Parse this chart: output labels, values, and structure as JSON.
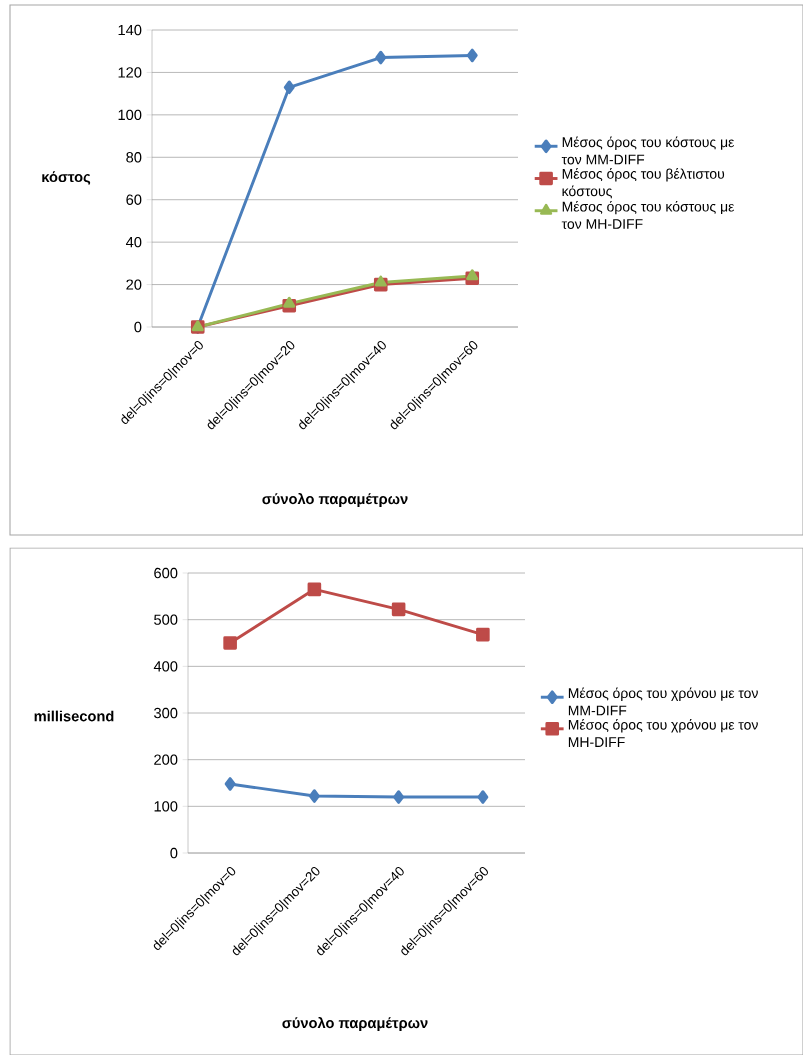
{
  "chart_data": [
    {
      "type": "line",
      "xlabel": "σύνολο παραμέτρων",
      "ylabel": "κόστος",
      "categories": [
        "del=0|ins=0|mov=0",
        "del=0|ins=0|mov=20",
        "del=0|ins=0|mov=40",
        "del=0|ins=0|mov=60"
      ],
      "series": [
        {
          "name": "Μέσος όρος του κόστους με τον MM-DIFF",
          "color": "#4a7ebb",
          "marker": "diamond",
          "values": [
            0,
            113,
            127,
            128
          ]
        },
        {
          "name": "Μέσος όρος του βέλτιστου κόστους",
          "color": "#be4b48",
          "marker": "square",
          "values": [
            0,
            10,
            20,
            23
          ]
        },
        {
          "name": "Μέσος όρος του κόστους με τον MH-DIFF",
          "color": "#98b954",
          "marker": "triangle",
          "values": [
            0,
            11,
            21,
            24
          ]
        }
      ],
      "ylim": [
        0,
        140
      ],
      "yticks": [
        0,
        20,
        40,
        60,
        80,
        100,
        120,
        140
      ],
      "grid": "y",
      "legend": "right",
      "line_style": "solid"
    },
    {
      "type": "line",
      "xlabel": "σύνολο παραμέτρων",
      "ylabel": "millisecond",
      "categories": [
        "del=0|ins=0|mov=0",
        "del=0|ins=0|mov=20",
        "del=0|ins=0|mov=40",
        "del=0|ins=0|mov=60"
      ],
      "series": [
        {
          "name": "Μέσος όρος του χρόνου με τον MM-DIFF",
          "color": "#4a7ebb",
          "marker": "diamond",
          "values": [
            148,
            122,
            120,
            120
          ]
        },
        {
          "name": "Μέσος όρος του χρόνου με τον MH-DIFF",
          "color": "#be4b48",
          "marker": "square",
          "values": [
            450,
            565,
            522,
            468
          ]
        }
      ],
      "ylim": [
        0,
        600
      ],
      "yticks": [
        0,
        100,
        200,
        300,
        400,
        500,
        600
      ],
      "grid": "y",
      "legend": "right",
      "line_style": "solid"
    }
  ]
}
